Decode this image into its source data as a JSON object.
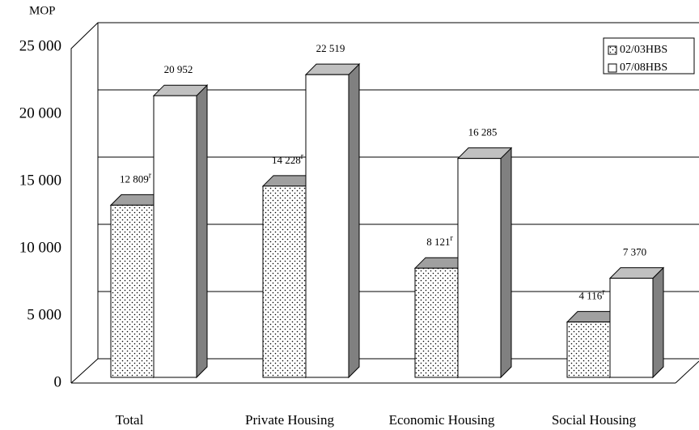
{
  "chart_data": {
    "type": "bar3d",
    "y_label": "MOP",
    "categories": [
      "Total",
      "Private Housing",
      "Economic Housing",
      "Social Housing"
    ],
    "series": [
      {
        "name": "02/03HBS",
        "color": "#ffffff",
        "pattern": "dots",
        "values": [
          12809,
          14228,
          8121,
          4116
        ],
        "value_labels": [
          "12 809",
          "14 228",
          "8 121",
          "4 116"
        ],
        "value_label_note": "r"
      },
      {
        "name": "07/08HBS",
        "color": "#ffffff",
        "values": [
          20952,
          22519,
          16285,
          7370
        ],
        "value_labels": [
          "20 952",
          "22 519",
          "16 285",
          "7 370"
        ]
      }
    ],
    "ylim": [
      0,
      25000
    ],
    "yticks": [
      0,
      {
        "value": 5000,
        "label": "5 000"
      },
      {
        "value": 10000,
        "label": "10 000"
      },
      {
        "value": 15000,
        "label": "15 000"
      },
      {
        "value": 20000,
        "label": "20 000"
      },
      {
        "value": 25000,
        "label": "25 000"
      }
    ],
    "grid": true,
    "legend": "upper right"
  }
}
